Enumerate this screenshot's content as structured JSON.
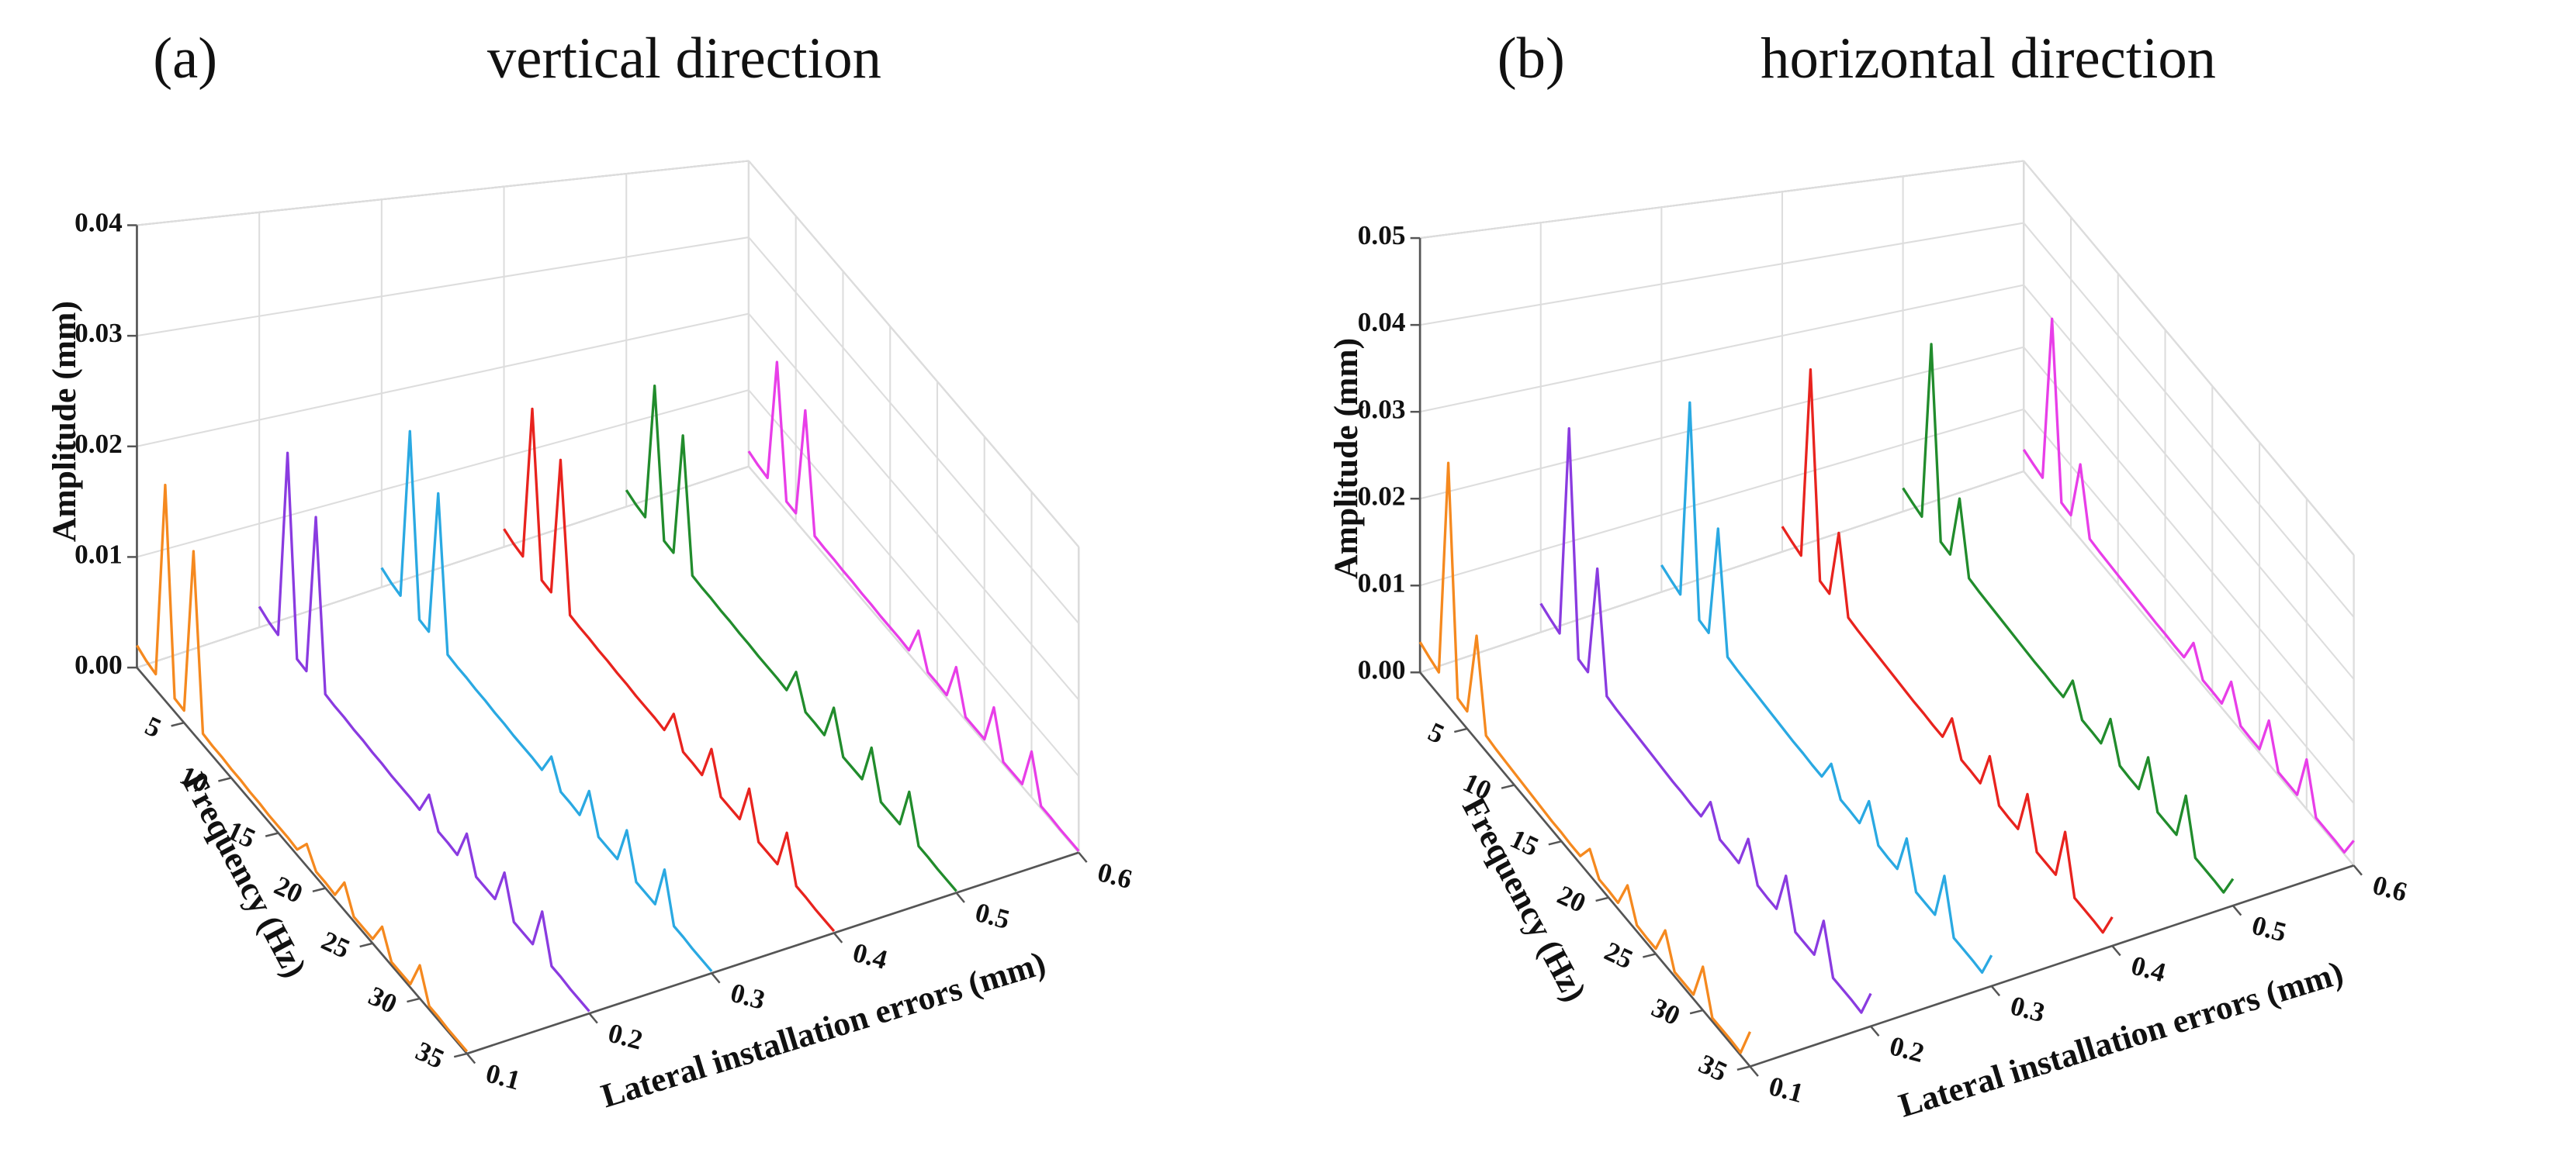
{
  "chart_data": [
    {
      "type": "waterfall3d",
      "panel_label": "(a)",
      "title": "vertical direction",
      "z_label": "Amplitude (mm)",
      "x_label": "Frequency (Hz)",
      "y_label": "Lateral installation errors (mm)",
      "x": [
        0,
        1,
        2,
        3,
        4,
        5,
        6,
        7,
        8,
        9,
        10,
        11,
        12,
        13,
        14,
        15,
        16,
        17,
        18,
        19,
        20,
        21,
        22,
        23,
        24,
        25,
        26,
        27,
        28,
        29,
        30,
        31,
        32,
        33,
        34,
        35
      ],
      "xlim": [
        0,
        35
      ],
      "xticks": [
        5,
        10,
        15,
        20,
        25,
        30,
        35
      ],
      "ylim": [
        0.1,
        0.6
      ],
      "yticks": [
        0.1,
        0.2,
        0.3,
        0.4,
        0.5,
        0.6
      ],
      "zlim": [
        0,
        0.04
      ],
      "zticks": [
        {
          "value": 0,
          "label": "0.00"
        },
        {
          "value": 0.01,
          "label": "0.01"
        },
        {
          "value": 0.02,
          "label": "0.02"
        },
        {
          "value": 0.03,
          "label": "0.03"
        },
        {
          "value": 0.04,
          "label": "0.04"
        }
      ],
      "grid": true,
      "series": [
        {
          "y": 0.1,
          "color": "#f5891f",
          "values": [
            0.002,
            0.0016,
            0.0014,
            0.0195,
            0.0012,
            0.0011,
            0.0165,
            0.001,
            0.0009,
            0.0009,
            0.0008,
            0.0008,
            0.0007,
            0.0007,
            0.0006,
            0.0006,
            0.0006,
            0.0005,
            0.002,
            0.0005,
            0.0005,
            0.0004,
            0.0025,
            0.0004,
            0.0004,
            0.0004,
            0.0025,
            0.0003,
            0.0003,
            0.0003,
            0.003,
            0.0003,
            0.0003,
            0.0002,
            0.0002,
            0.0002
          ]
        },
        {
          "y": 0.2,
          "color": "#8a3be0",
          "values": [
            0.002,
            0.0016,
            0.0014,
            0.02,
            0.0012,
            0.0011,
            0.017,
            0.001,
            0.0009,
            0.0009,
            0.0008,
            0.0008,
            0.0007,
            0.0007,
            0.0006,
            0.0006,
            0.0006,
            0.0005,
            0.003,
            0.0005,
            0.0005,
            0.0004,
            0.0035,
            0.0004,
            0.0004,
            0.0004,
            0.004,
            0.0003,
            0.0003,
            0.0003,
            0.0045,
            0.0003,
            0.0003,
            0.0002,
            0.0002,
            0.0002
          ]
        },
        {
          "y": 0.3,
          "color": "#2aa9e2",
          "values": [
            0.002,
            0.0016,
            0.0014,
            0.0195,
            0.0012,
            0.0011,
            0.0165,
            0.001,
            0.0009,
            0.0009,
            0.0008,
            0.0008,
            0.0007,
            0.0007,
            0.0006,
            0.0006,
            0.0006,
            0.0005,
            0.003,
            0.0005,
            0.0005,
            0.0004,
            0.004,
            0.0004,
            0.0004,
            0.0004,
            0.0045,
            0.0003,
            0.0003,
            0.0003,
            0.005,
            0.0003,
            0.0003,
            0.0002,
            0.0002,
            0.0002
          ]
        },
        {
          "y": 0.4,
          "color": "#e8231e",
          "values": [
            0.002,
            0.0016,
            0.0014,
            0.019,
            0.0012,
            0.0011,
            0.017,
            0.001,
            0.0009,
            0.0009,
            0.0008,
            0.0008,
            0.0007,
            0.0007,
            0.0006,
            0.0006,
            0.0006,
            0.0005,
            0.0035,
            0.0005,
            0.0005,
            0.0004,
            0.0045,
            0.0004,
            0.0004,
            0.0004,
            0.005,
            0.0003,
            0.0003,
            0.0003,
            0.005,
            0.0003,
            0.0003,
            0.0002,
            0.0002,
            0.0002
          ]
        },
        {
          "y": 0.5,
          "color": "#218c2c",
          "values": [
            0.002,
            0.0016,
            0.0014,
            0.0185,
            0.0012,
            0.0011,
            0.0165,
            0.001,
            0.0009,
            0.0009,
            0.0008,
            0.0008,
            0.0007,
            0.0007,
            0.0006,
            0.0006,
            0.0006,
            0.0005,
            0.004,
            0.0005,
            0.0005,
            0.0004,
            0.005,
            0.0004,
            0.0004,
            0.0004,
            0.0055,
            0.0003,
            0.0003,
            0.0003,
            0.0055,
            0.0003,
            0.0003,
            0.0002,
            0.0002,
            0.0002
          ]
        },
        {
          "y": 0.6,
          "color": "#e83ee8",
          "values": [
            0.002,
            0.0016,
            0.0014,
            0.018,
            0.0012,
            0.0011,
            0.016,
            0.001,
            0.0009,
            0.0009,
            0.0008,
            0.0008,
            0.0007,
            0.0007,
            0.0006,
            0.0006,
            0.0006,
            0.0005,
            0.0045,
            0.0005,
            0.0005,
            0.0004,
            0.0055,
            0.0004,
            0.0004,
            0.0004,
            0.006,
            0.0003,
            0.0003,
            0.0003,
            0.006,
            0.0003,
            0.0003,
            0.0002,
            0.0002,
            0.0002
          ]
        }
      ]
    },
    {
      "type": "waterfall3d",
      "panel_label": "(b)",
      "title": "horizontal direction",
      "z_label": "Amplitude (mm)",
      "x_label": "Frequency (Hz)",
      "y_label": "Lateral installation errors (mm)",
      "x": [
        0,
        1,
        2,
        3,
        4,
        5,
        6,
        7,
        8,
        9,
        10,
        11,
        12,
        13,
        14,
        15,
        16,
        17,
        18,
        19,
        20,
        21,
        22,
        23,
        24,
        25,
        26,
        27,
        28,
        29,
        30,
        31,
        32,
        33,
        34,
        35
      ],
      "xlim": [
        0,
        35
      ],
      "xticks": [
        5,
        10,
        15,
        20,
        25,
        30,
        35
      ],
      "ylim": [
        0.1,
        0.6
      ],
      "yticks": [
        0.1,
        0.2,
        0.3,
        0.4,
        0.5,
        0.6
      ],
      "zlim": [
        0,
        0.05
      ],
      "zticks": [
        {
          "value": 0,
          "label": "0.00"
        },
        {
          "value": 0.01,
          "label": "0.01"
        },
        {
          "value": 0.02,
          "label": "0.02"
        },
        {
          "value": 0.03,
          "label": "0.03"
        },
        {
          "value": 0.04,
          "label": "0.04"
        },
        {
          "value": 0.05,
          "label": "0.05"
        }
      ],
      "grid": true,
      "series": [
        {
          "y": 0.1,
          "color": "#f5891f",
          "values": [
            0.0035,
            0.003,
            0.0026,
            0.028,
            0.0022,
            0.002,
            0.012,
            0.0018,
            0.0016,
            0.0015,
            0.0014,
            0.0013,
            0.0012,
            0.0011,
            0.001,
            0.001,
            0.0009,
            0.0009,
            0.003,
            0.0008,
            0.0008,
            0.0007,
            0.004,
            0.0007,
            0.0006,
            0.0006,
            0.004,
            0.0005,
            0.0005,
            0.0005,
            0.005,
            0.0004,
            0.0004,
            0.0004,
            0.0003,
            0.004
          ]
        },
        {
          "y": 0.2,
          "color": "#8a3be0",
          "values": [
            0.0035,
            0.003,
            0.0026,
            0.029,
            0.0022,
            0.002,
            0.016,
            0.0018,
            0.0016,
            0.0015,
            0.0014,
            0.0013,
            0.0012,
            0.0011,
            0.001,
            0.001,
            0.0009,
            0.0009,
            0.004,
            0.0008,
            0.0008,
            0.0007,
            0.005,
            0.0007,
            0.0006,
            0.0006,
            0.006,
            0.0005,
            0.0005,
            0.0005,
            0.006,
            0.0004,
            0.0004,
            0.0004,
            0.0003,
            0.004
          ]
        },
        {
          "y": 0.3,
          "color": "#2aa9e2",
          "values": [
            0.0035,
            0.003,
            0.0026,
            0.029,
            0.0022,
            0.002,
            0.017,
            0.0018,
            0.0016,
            0.0015,
            0.0014,
            0.0013,
            0.0012,
            0.0011,
            0.001,
            0.001,
            0.0009,
            0.0009,
            0.004,
            0.0008,
            0.0008,
            0.0007,
            0.005,
            0.0007,
            0.0006,
            0.0006,
            0.006,
            0.0005,
            0.0005,
            0.0005,
            0.007,
            0.0004,
            0.0004,
            0.0004,
            0.0003,
            0.004
          ]
        },
        {
          "y": 0.4,
          "color": "#e8231e",
          "values": [
            0.0035,
            0.003,
            0.0026,
            0.03,
            0.0022,
            0.002,
            0.012,
            0.0018,
            0.0016,
            0.0015,
            0.0014,
            0.0013,
            0.0012,
            0.0011,
            0.001,
            0.001,
            0.0009,
            0.0009,
            0.005,
            0.0008,
            0.0008,
            0.0007,
            0.006,
            0.0007,
            0.0006,
            0.0006,
            0.007,
            0.0005,
            0.0005,
            0.0005,
            0.008,
            0.0004,
            0.0004,
            0.0004,
            0.0003,
            0.004
          ]
        },
        {
          "y": 0.5,
          "color": "#218c2c",
          "values": [
            0.0035,
            0.003,
            0.0026,
            0.03,
            0.0022,
            0.002,
            0.012,
            0.0018,
            0.0016,
            0.0015,
            0.0014,
            0.0013,
            0.0012,
            0.0011,
            0.001,
            0.001,
            0.0009,
            0.0009,
            0.005,
            0.0008,
            0.0008,
            0.0007,
            0.006,
            0.0007,
            0.0006,
            0.0006,
            0.007,
            0.0005,
            0.0005,
            0.0005,
            0.008,
            0.0004,
            0.0004,
            0.0004,
            0.0003,
            0.004
          ]
        },
        {
          "y": 0.6,
          "color": "#e83ee8",
          "values": [
            0.0035,
            0.003,
            0.0026,
            0.03,
            0.0022,
            0.002,
            0.012,
            0.0018,
            0.0016,
            0.0015,
            0.0014,
            0.0013,
            0.0012,
            0.0011,
            0.001,
            0.001,
            0.0009,
            0.0009,
            0.005,
            0.0008,
            0.0008,
            0.0007,
            0.006,
            0.0007,
            0.0006,
            0.0006,
            0.007,
            0.0005,
            0.0005,
            0.0005,
            0.008,
            0.0004,
            0.0004,
            0.0004,
            0.0003,
            0.004
          ]
        }
      ]
    }
  ]
}
